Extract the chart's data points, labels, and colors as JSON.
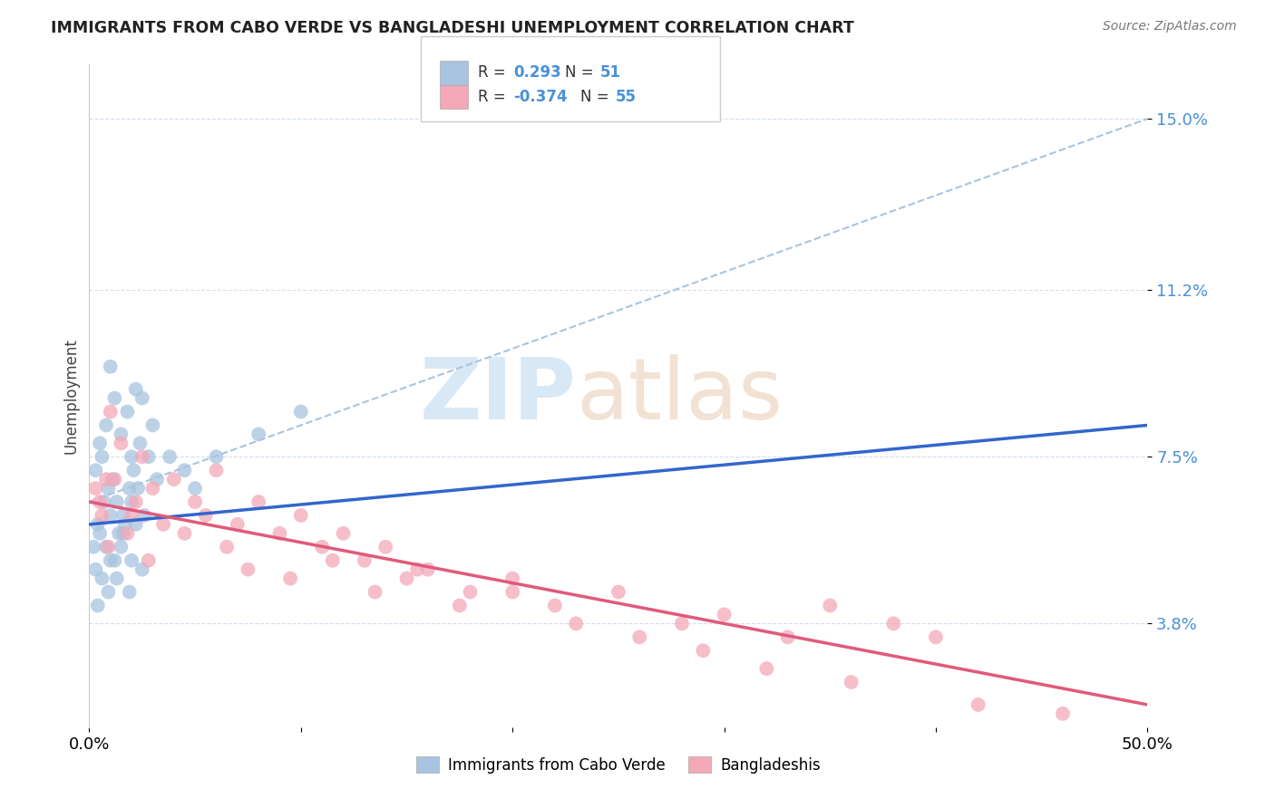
{
  "title": "IMMIGRANTS FROM CABO VERDE VS BANGLADESHI UNEMPLOYMENT CORRELATION CHART",
  "source": "Source: ZipAtlas.com",
  "ylabel": "Unemployment",
  "yticks": [
    "3.8%",
    "7.5%",
    "11.2%",
    "15.0%"
  ],
  "ytick_values": [
    3.8,
    7.5,
    11.2,
    15.0
  ],
  "xmin": 0.0,
  "xmax": 50.0,
  "ymin": 1.5,
  "ymax": 16.2,
  "cabo_verde_color": "#a8c4e0",
  "bangladeshi_color": "#f4a8b8",
  "cabo_verde_line_color": "#3366cc",
  "bangladeshi_line_color": "#e05a7a",
  "dashed_line_color": "#a8c4e0",
  "watermark_zip": "ZIP",
  "watermark_atlas": "atlas",
  "watermark_color": "#d8e8f5",
  "cabo_verde_label": "Immigrants from Cabo Verde",
  "bangladeshi_label": "Bangladeshis",
  "cabo_verde_x": [
    0.5,
    0.8,
    1.0,
    1.2,
    1.5,
    1.8,
    2.0,
    2.2,
    2.5,
    3.0,
    0.3,
    0.6,
    0.9,
    1.1,
    1.3,
    1.6,
    1.9,
    2.1,
    2.4,
    2.8,
    0.4,
    0.7,
    1.0,
    1.4,
    1.7,
    2.0,
    2.3,
    2.6,
    3.2,
    3.8,
    0.2,
    0.5,
    0.8,
    1.2,
    1.6,
    2.2,
    0.3,
    0.6,
    1.0,
    1.5,
    1.9,
    2.5,
    0.4,
    0.9,
    1.3,
    2.0,
    4.5,
    5.0,
    6.0,
    8.0,
    10.0
  ],
  "cabo_verde_y": [
    7.8,
    8.2,
    9.5,
    8.8,
    8.0,
    8.5,
    7.5,
    9.0,
    8.8,
    8.2,
    7.2,
    7.5,
    6.8,
    7.0,
    6.5,
    6.2,
    6.8,
    7.2,
    7.8,
    7.5,
    6.0,
    6.5,
    6.2,
    5.8,
    6.0,
    6.5,
    6.8,
    6.2,
    7.0,
    7.5,
    5.5,
    5.8,
    5.5,
    5.2,
    5.8,
    6.0,
    5.0,
    4.8,
    5.2,
    5.5,
    4.5,
    5.0,
    4.2,
    4.5,
    4.8,
    5.2,
    7.2,
    6.8,
    7.5,
    8.0,
    8.5
  ],
  "bangladeshi_x": [
    0.5,
    0.8,
    1.0,
    1.5,
    2.0,
    2.5,
    3.0,
    4.0,
    5.0,
    6.0,
    7.0,
    8.0,
    9.0,
    10.0,
    11.0,
    12.0,
    13.0,
    14.0,
    15.0,
    16.0,
    18.0,
    20.0,
    22.0,
    25.0,
    28.0,
    30.0,
    33.0,
    35.0,
    38.0,
    40.0,
    0.3,
    0.6,
    0.9,
    1.2,
    1.8,
    2.2,
    2.8,
    3.5,
    4.5,
    5.5,
    6.5,
    7.5,
    9.5,
    11.5,
    13.5,
    15.5,
    17.5,
    20.0,
    23.0,
    26.0,
    29.0,
    32.0,
    36.0,
    42.0,
    46.0
  ],
  "bangladeshi_y": [
    6.5,
    7.0,
    8.5,
    7.8,
    6.2,
    7.5,
    6.8,
    7.0,
    6.5,
    7.2,
    6.0,
    6.5,
    5.8,
    6.2,
    5.5,
    5.8,
    5.2,
    5.5,
    4.8,
    5.0,
    4.5,
    4.8,
    4.2,
    4.5,
    3.8,
    4.0,
    3.5,
    4.2,
    3.8,
    3.5,
    6.8,
    6.2,
    5.5,
    7.0,
    5.8,
    6.5,
    5.2,
    6.0,
    5.8,
    6.2,
    5.5,
    5.0,
    4.8,
    5.2,
    4.5,
    5.0,
    4.2,
    4.5,
    3.8,
    3.5,
    3.2,
    2.8,
    2.5,
    2.0,
    1.8
  ],
  "blue_line_x0": 0.0,
  "blue_line_y0": 6.0,
  "blue_line_x1": 50.0,
  "blue_line_y1": 8.2,
  "pink_line_x0": 0.0,
  "pink_line_y0": 6.5,
  "pink_line_x1": 50.0,
  "pink_line_y1": 2.0,
  "dash_line_x0": 0.0,
  "dash_line_y0": 6.5,
  "dash_line_x1": 50.0,
  "dash_line_y1": 15.0
}
